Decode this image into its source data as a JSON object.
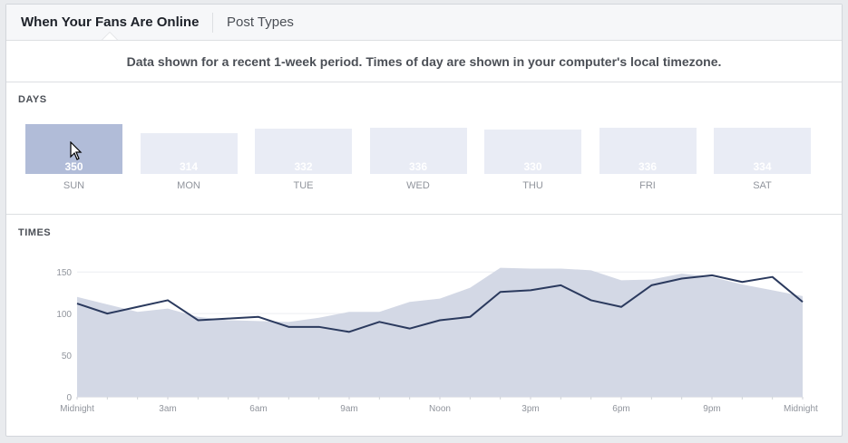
{
  "tabs": [
    {
      "label": "When Your Fans Are Online",
      "active": true
    },
    {
      "label": "Post Types",
      "active": false
    }
  ],
  "notice": "Data shown for a recent 1-week period. Times of day are shown in your computer's local timezone.",
  "days_section": {
    "title": "DAYS",
    "selected_day": "SUN",
    "days": [
      {
        "label": "SUN",
        "value": "350"
      },
      {
        "label": "MON",
        "value": "314"
      },
      {
        "label": "TUE",
        "value": "332"
      },
      {
        "label": "WED",
        "value": "336"
      },
      {
        "label": "THU",
        "value": "330"
      },
      {
        "label": "FRI",
        "value": "336"
      },
      {
        "label": "SAT",
        "value": "334"
      }
    ]
  },
  "times_section": {
    "title": "TIMES"
  },
  "colors": {
    "selected_day_bar": "#b1bcd8",
    "day_bar": "#e9ecf5",
    "area_fill": "#d3d8e5",
    "line": "#2b3a5e"
  },
  "chart_data": {
    "type": "line",
    "x_ticks": [
      "Midnight",
      "3am",
      "6am",
      "9am",
      "Noon",
      "3pm",
      "6pm",
      "9pm",
      "Midnight"
    ],
    "ylim": [
      0,
      160
    ],
    "y_ticks": [
      "0",
      "50",
      "100",
      "150"
    ],
    "grid": true,
    "x_hours": [
      0,
      1,
      2,
      3,
      4,
      5,
      6,
      7,
      8,
      9,
      10,
      11,
      12,
      13,
      14,
      15,
      16,
      17,
      18,
      19,
      20,
      21,
      22,
      23,
      24
    ],
    "series": [
      {
        "kind": "area",
        "values": [
          120,
          111,
          102,
          106,
          96,
          92,
          91,
          90,
          95,
          102,
          102,
          114,
          118,
          131,
          155,
          154,
          154,
          152,
          140,
          141,
          148,
          144,
          135,
          128,
          121
        ]
      },
      {
        "kind": "line",
        "values": [
          112,
          100,
          108,
          116,
          92,
          94,
          96,
          84,
          84,
          78,
          90,
          82,
          92,
          96,
          126,
          128,
          134,
          116,
          108,
          134,
          142,
          146,
          138,
          144,
          114
        ]
      }
    ]
  }
}
